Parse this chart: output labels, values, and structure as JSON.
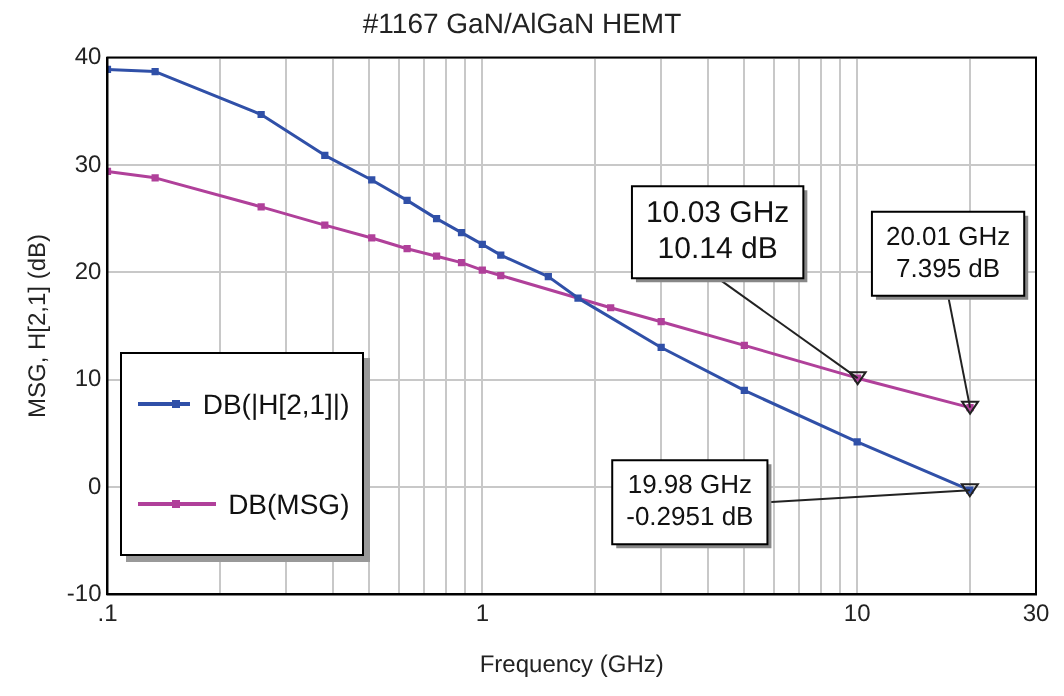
{
  "chart_data": {
    "type": "line",
    "title": "#1167 GaN/AlGaN HEMT",
    "xlabel": "Frequency (GHz)",
    "ylabel": "MSG, H[2,1] (dB)",
    "series": [
      {
        "name": "DB(|H[2,1]|)",
        "color": "#3050a8",
        "x": [
          0.1,
          0.134,
          0.257,
          0.38,
          0.507,
          0.63,
          0.755,
          0.88,
          1.0,
          1.12,
          1.5,
          1.8,
          3,
          5,
          10,
          19.98
        ],
        "values": [
          38.9,
          38.7,
          34.7,
          30.9,
          28.6,
          26.7,
          25.0,
          23.7,
          22.6,
          21.6,
          19.6,
          17.6,
          13.0,
          9.0,
          4.2,
          -0.2951
        ]
      },
      {
        "name": "DB(MSG)",
        "color": "#b0409a",
        "x": [
          0.1,
          0.134,
          0.257,
          0.38,
          0.507,
          0.63,
          0.755,
          0.88,
          1.0,
          1.12,
          2.2,
          3,
          5,
          10.03,
          20.01
        ],
        "values": [
          29.4,
          28.8,
          26.1,
          24.4,
          23.2,
          22.2,
          21.5,
          20.9,
          20.2,
          19.7,
          16.7,
          15.4,
          13.2,
          10.14,
          7.395
        ]
      }
    ],
    "xlim": [
      0.1,
      30
    ],
    "ylim": [
      -10,
      40
    ],
    "log": "x",
    "xticks": [
      {
        "value": 0.1,
        "label": ".1"
      },
      {
        "value": 0.2,
        "label": null
      },
      {
        "value": 0.3,
        "label": null
      },
      {
        "value": 0.4,
        "label": null
      },
      {
        "value": 0.5,
        "label": null
      },
      {
        "value": 0.6,
        "label": null
      },
      {
        "value": 0.7,
        "label": null
      },
      {
        "value": 0.8,
        "label": null
      },
      {
        "value": 0.9,
        "label": null
      },
      1,
      {
        "value": 2,
        "label": null
      },
      {
        "value": 3,
        "label": null
      },
      {
        "value": 4,
        "label": null
      },
      {
        "value": 5,
        "label": null
      },
      {
        "value": 6,
        "label": null
      },
      {
        "value": 7,
        "label": null
      },
      {
        "value": 8,
        "label": null
      },
      {
        "value": 9,
        "label": null
      },
      10,
      {
        "value": 20,
        "label": null
      },
      30
    ],
    "yticks": [
      -10,
      0,
      10,
      20,
      30,
      40
    ],
    "grid": true,
    "legend": "left",
    "marker": "square",
    "line_style": "solid",
    "annotations": [
      {
        "text": "10.03 GHz\n10.14 dB",
        "x": 10.03,
        "y": 10.14
      },
      {
        "text": "20.01 GHz\n7.395 dB",
        "x": 20.01,
        "y": 7.395
      },
      {
        "text": "19.98 GHz\n-0.2951 dB",
        "x": 19.98,
        "y": -0.2951
      }
    ]
  }
}
